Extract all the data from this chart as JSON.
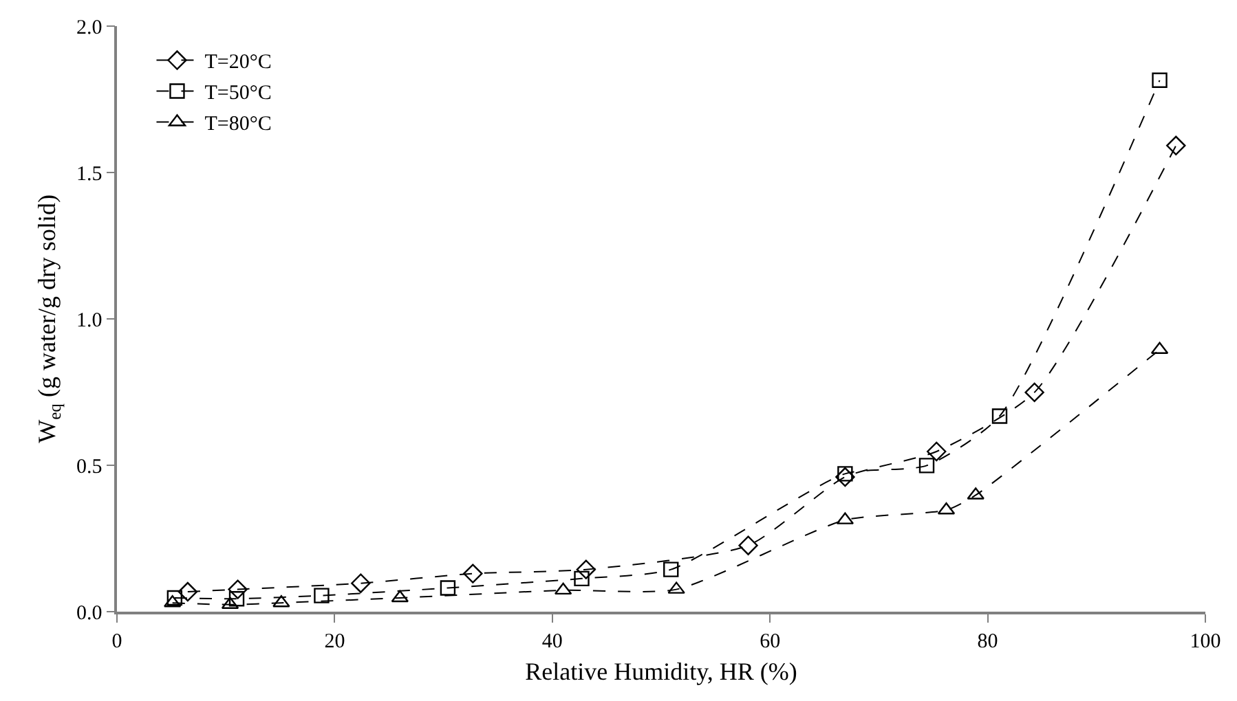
{
  "chart_data": {
    "type": "line",
    "xlabel": "Relative Humidity, HR (%)",
    "ylabel": "W$_{eq}$ (g water/g dry solid)",
    "xlim": [
      0,
      100
    ],
    "xticks": [
      0,
      20,
      40,
      60,
      80,
      100
    ],
    "ylim": [
      0,
      2.0
    ],
    "yticks": [
      {
        "value": 0,
        "label": "0.0"
      },
      {
        "value": 0.5,
        "label": "0.5"
      },
      {
        "value": 1.0,
        "label": "1.0"
      },
      {
        "value": 1.5,
        "label": "1.5"
      },
      {
        "value": 2.0,
        "label": "2.0"
      }
    ],
    "legend": "top left",
    "line_style": "dashed",
    "series": [
      {
        "name": "T=20°C",
        "color": "#000000",
        "marker": "diamond",
        "x": [
          6.5,
          11.1,
          22.4,
          32.7,
          43.1,
          58.0,
          66.9,
          75.3,
          84.3,
          97.3
        ],
        "values": [
          0.068,
          0.076,
          0.097,
          0.13,
          0.144,
          0.226,
          0.46,
          0.547,
          0.749,
          1.592
        ]
      },
      {
        "name": "T=50°C",
        "color": "#000000",
        "marker": "square",
        "x": [
          5.3,
          11.0,
          18.8,
          30.4,
          42.7,
          50.9,
          66.9,
          74.4,
          81.1,
          95.8
        ],
        "values": [
          0.047,
          0.044,
          0.055,
          0.081,
          0.113,
          0.144,
          0.471,
          0.499,
          0.668,
          1.815
        ]
      },
      {
        "name": "T=80°C",
        "color": "#000000",
        "marker": "triangle",
        "x": [
          5.1,
          10.4,
          15.1,
          26.0,
          41.0,
          51.4,
          66.9,
          76.2,
          78.9,
          95.8
        ],
        "values": [
          0.03,
          0.024,
          0.03,
          0.047,
          0.073,
          0.076,
          0.313,
          0.347,
          0.398,
          0.895
        ]
      }
    ]
  }
}
